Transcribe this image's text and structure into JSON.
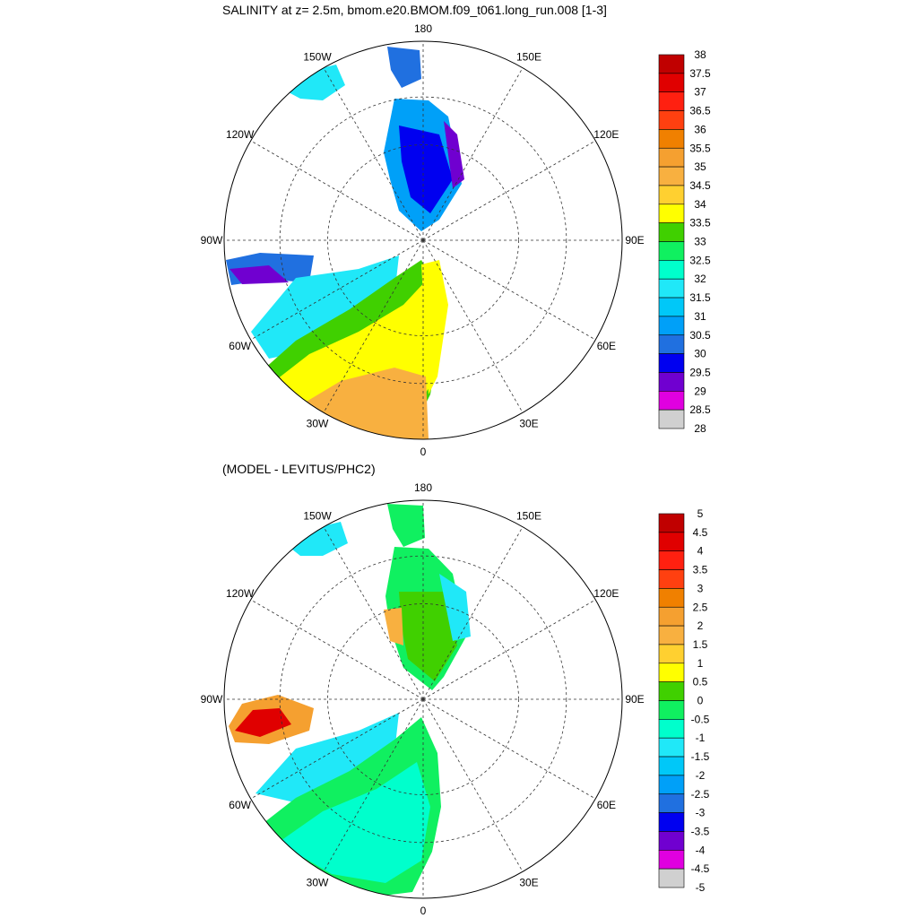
{
  "chart_data": [
    {
      "type": "polar-contour-map",
      "title": "SALINITY at z=   2.5m, bmom.e20.BMOM.f09_t061.long_run.008 [1-3]",
      "projection": "north-polar-stereographic",
      "longitude_labels": [
        "180",
        "150E",
        "120E",
        "90E",
        "60E",
        "30E",
        "0",
        "30W",
        "60W",
        "90W",
        "120W",
        "150W"
      ],
      "colorbar": {
        "labels": [
          "38",
          "37.5",
          "37",
          "36.5",
          "36",
          "35.5",
          "35",
          "34.5",
          "34",
          "33.5",
          "33",
          "32.5",
          "32",
          "31.5",
          "31",
          "30.5",
          "30",
          "29.5",
          "29",
          "28.5",
          "28"
        ],
        "colors": [
          "#c00000",
          "#e00000",
          "#ff2010",
          "#ff4010",
          "#f08000",
          "#f5a030",
          "#f8b040",
          "#ffd030",
          "#ffff00",
          "#40d000",
          "#10f060",
          "#00ffcc",
          "#20e8f8",
          "#00c8f8",
          "#00a0f8",
          "#2070e0",
          "#0000f0",
          "#7000d0",
          "#e000e0",
          "#d0d0d0",
          "#707070"
        ],
        "range": [
          28,
          38
        ],
        "interval": 0.5
      }
    },
    {
      "type": "polar-contour-map",
      "title": "(MODEL - LEVITUS/PHC2)",
      "projection": "north-polar-stereographic",
      "longitude_labels": [
        "180",
        "150E",
        "120E",
        "90E",
        "60E",
        "30E",
        "0",
        "30W",
        "60W",
        "90W",
        "120W",
        "150W"
      ],
      "colorbar": {
        "labels": [
          "5",
          "4.5",
          "4",
          "3.5",
          "3",
          "2.5",
          "2",
          "1.5",
          "1",
          "0.5",
          "0",
          "-0.5",
          "-1",
          "-1.5",
          "-2",
          "-2.5",
          "-3",
          "-3.5",
          "-4",
          "-4.5",
          "-5"
        ],
        "colors": [
          "#c00000",
          "#e00000",
          "#ff2010",
          "#ff4010",
          "#f08000",
          "#f5a030",
          "#f8b040",
          "#ffd030",
          "#ffff00",
          "#40d000",
          "#10f060",
          "#00ffcc",
          "#20e8f8",
          "#00c8f8",
          "#00a0f8",
          "#2070e0",
          "#0000f0",
          "#7000d0",
          "#e000e0",
          "#d0d0d0",
          "#707070"
        ],
        "range": [
          -5,
          5
        ],
        "interval": 0.5
      }
    }
  ]
}
